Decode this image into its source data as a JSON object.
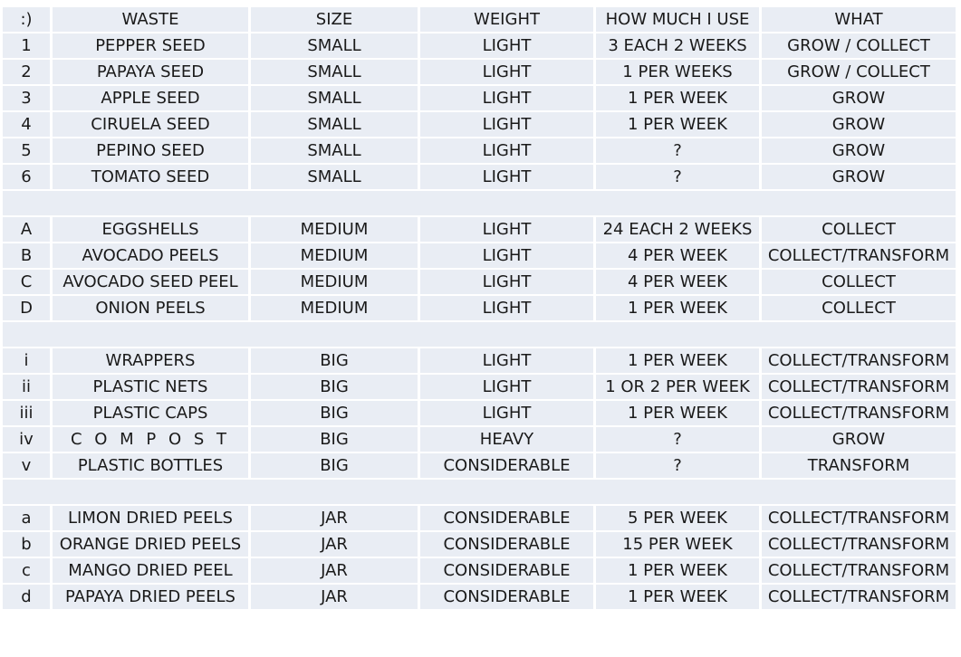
{
  "header": [
    ":)",
    "WASTE",
    "SIZE",
    "WEIGHT",
    "HOW MUCH I USE",
    "WHAT"
  ],
  "groups": [
    {
      "rows": [
        [
          "1",
          "PEPPER SEED",
          "SMALL",
          "LIGHT",
          "3 EACH 2 WEEKS",
          "GROW / COLLECT"
        ],
        [
          "2",
          "PAPAYA SEED",
          "SMALL",
          "LIGHT",
          "1 PER WEEKS",
          "GROW / COLLECT"
        ],
        [
          "3",
          "APPLE SEED",
          "SMALL",
          "LIGHT",
          "1 PER WEEK",
          "GROW"
        ],
        [
          "4",
          "CIRUELA SEED",
          "SMALL",
          "LIGHT",
          "1 PER WEEK",
          "GROW"
        ],
        [
          "5",
          "PEPINO SEED",
          "SMALL",
          "LIGHT",
          "?",
          "GROW"
        ],
        [
          "6",
          "TOMATO SEED",
          "SMALL",
          "LIGHT",
          "?",
          "GROW"
        ]
      ]
    },
    {
      "rows": [
        [
          "A",
          "EGGSHELLS",
          "MEDIUM",
          "LIGHT",
          "24 EACH 2 WEEKS",
          "COLLECT"
        ],
        [
          "B",
          "AVOCADO PEELS",
          "MEDIUM",
          "LIGHT",
          "4 PER WEEK",
          "COLLECT/TRANSFORM"
        ],
        [
          "C",
          "AVOCADO SEED PEEL",
          "MEDIUM",
          "LIGHT",
          "4 PER WEEK",
          "COLLECT"
        ],
        [
          "D",
          "ONION PEELS",
          "MEDIUM",
          "LIGHT",
          "1 PER WEEK",
          "COLLECT"
        ]
      ]
    },
    {
      "rows": [
        [
          "i",
          "WRAPPERS",
          "BIG",
          "LIGHT",
          "1 PER WEEK",
          "COLLECT/TRANSFORM"
        ],
        [
          "ii",
          "PLASTIC NETS",
          "BIG",
          "LIGHT",
          "1 OR 2 PER WEEK",
          "COLLECT/TRANSFORM"
        ],
        [
          "iii",
          "PLASTIC CAPS",
          "BIG",
          "LIGHT",
          "1 PER WEEK",
          "COLLECT/TRANSFORM"
        ],
        [
          "iv",
          "C O M P O S T",
          "BIG",
          "HEAVY",
          "?",
          "GROW"
        ],
        [
          "v",
          "PLASTIC BOTTLES",
          "BIG",
          "CONSIDERABLE",
          "?",
          "TRANSFORM"
        ]
      ]
    },
    {
      "rows": [
        [
          "a",
          "LIMON DRIED PEELS",
          "JAR",
          "CONSIDERABLE",
          "5 PER WEEK",
          "COLLECT/TRANSFORM"
        ],
        [
          "b",
          "ORANGE DRIED PEELS",
          "JAR",
          "CONSIDERABLE",
          "15 PER WEEK",
          "COLLECT/TRANSFORM"
        ],
        [
          "c",
          "MANGO DRIED PEEL",
          "JAR",
          "CONSIDERABLE",
          "1 PER WEEK",
          "COLLECT/TRANSFORM"
        ],
        [
          "d",
          "PAPAYA DRIED PEELS",
          "JAR",
          "CONSIDERABLE",
          "1 PER WEEK",
          "COLLECT/TRANSFORM"
        ]
      ]
    }
  ],
  "colors": {
    "cell_background": "#e9edf4",
    "text": "#1a1a1a"
  }
}
